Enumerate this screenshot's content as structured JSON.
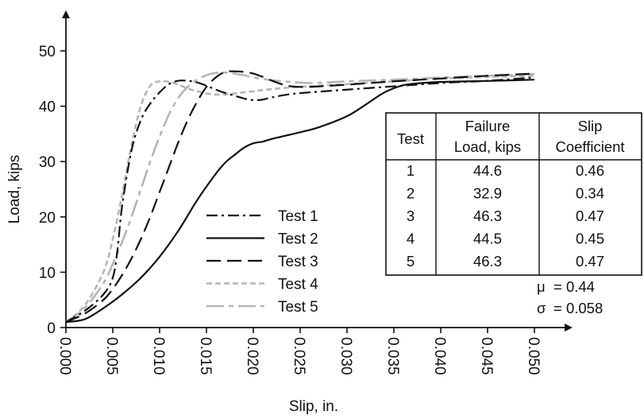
{
  "chart_data": {
    "type": "line",
    "xlabel": "Slip, in.",
    "ylabel": "Load, kips",
    "xlim": [
      0,
      0.05
    ],
    "ylim": [
      0,
      50
    ],
    "x_ticks": [
      "0.000",
      "0.005",
      "0.010",
      "0.015",
      "0.020",
      "0.025",
      "0.030",
      "0.035",
      "0.040",
      "0.045",
      "0.050"
    ],
    "y_ticks": [
      "0",
      "10",
      "20",
      "30",
      "40",
      "50"
    ],
    "grid": false,
    "legend_position": "center",
    "series": [
      {
        "name": "Test 1",
        "color": "#111111",
        "dash": "dash-dot",
        "x": [
          0,
          0.002,
          0.004,
          0.005,
          0.0055,
          0.006,
          0.007,
          0.008,
          0.009,
          0.01,
          0.011,
          0.012,
          0.013,
          0.014,
          0.015,
          0.016,
          0.017,
          0.018,
          0.019,
          0.02,
          0.021,
          0.022,
          0.024,
          0.026,
          0.03,
          0.035,
          0.04,
          0.045,
          0.05
        ],
        "y": [
          1,
          3,
          6,
          9,
          14,
          22,
          32,
          37.5,
          40.5,
          42.5,
          44,
          44.6,
          44.6,
          44.3,
          43.7,
          43,
          42.4,
          41.9,
          41.4,
          41.1,
          41.2,
          41.6,
          42.2,
          42.5,
          43,
          43.6,
          44.2,
          44.6,
          45.2
        ]
      },
      {
        "name": "Test 2",
        "color": "#111111",
        "dash": "solid",
        "x": [
          0,
          0.002,
          0.004,
          0.006,
          0.008,
          0.01,
          0.012,
          0.014,
          0.016,
          0.017,
          0.018,
          0.019,
          0.02,
          0.021,
          0.022,
          0.023,
          0.025,
          0.027,
          0.03,
          0.032,
          0.034,
          0.036,
          0.038,
          0.04,
          0.043,
          0.046,
          0.05
        ],
        "y": [
          1,
          1.5,
          3.5,
          6,
          9,
          12.8,
          17.5,
          23,
          27.8,
          29.8,
          31.2,
          32.5,
          33.3,
          33.6,
          34.1,
          34.5,
          35.3,
          36.2,
          38.2,
          40.3,
          42.5,
          43.8,
          44.2,
          44.4,
          44.5,
          44.6,
          44.8
        ]
      },
      {
        "name": "Test 3",
        "color": "#111111",
        "dash": "dash",
        "x": [
          0,
          0.002,
          0.004,
          0.005,
          0.006,
          0.007,
          0.008,
          0.009,
          0.01,
          0.011,
          0.012,
          0.013,
          0.014,
          0.015,
          0.016,
          0.017,
          0.018,
          0.019,
          0.02,
          0.021,
          0.022,
          0.023,
          0.024,
          0.026,
          0.03,
          0.035,
          0.04,
          0.045,
          0.05
        ],
        "y": [
          1,
          2.5,
          5,
          7,
          9.5,
          12.5,
          16,
          20,
          24.5,
          29,
          33.5,
          37.5,
          40.8,
          43.5,
          45.2,
          46.2,
          46.3,
          46.2,
          45.9,
          45.3,
          44.6,
          44.0,
          43.6,
          43.5,
          43.9,
          44.5,
          45.0,
          45.5,
          45.9
        ]
      },
      {
        "name": "Test 4",
        "color": "#b5b5b5",
        "dash": "short-dash",
        "x": [
          0,
          0.002,
          0.004,
          0.005,
          0.006,
          0.007,
          0.008,
          0.009,
          0.01,
          0.011,
          0.012,
          0.013,
          0.014,
          0.015,
          0.016,
          0.017,
          0.018,
          0.02,
          0.022,
          0.025,
          0.03,
          0.035,
          0.04,
          0.045,
          0.05
        ],
        "y": [
          1,
          4,
          10,
          16,
          24,
          33,
          40,
          43.7,
          44.5,
          44.4,
          43.9,
          43.2,
          42.7,
          42.3,
          42.1,
          42.1,
          42.3,
          42.7,
          43.1,
          43.5,
          44.0,
          44.5,
          45.0,
          45.3,
          45.5
        ]
      },
      {
        "name": "Test 5",
        "color": "#b5b5b5",
        "dash": "long-dash-dot",
        "x": [
          0,
          0.002,
          0.004,
          0.005,
          0.006,
          0.007,
          0.008,
          0.009,
          0.01,
          0.011,
          0.012,
          0.013,
          0.014,
          0.015,
          0.016,
          0.017,
          0.018,
          0.019,
          0.02,
          0.022,
          0.024,
          0.026,
          0.028,
          0.03,
          0.035,
          0.04,
          0.045,
          0.05
        ],
        "y": [
          1,
          3.5,
          8,
          11.5,
          15.5,
          20,
          25,
          30,
          34.5,
          38.5,
          41.5,
          43.5,
          44.8,
          45.6,
          46.0,
          46.1,
          45.9,
          45.6,
          45.2,
          44.7,
          44.4,
          44.2,
          44.3,
          44.5,
          44.8,
          45.2,
          45.5,
          45.8
        ]
      }
    ],
    "table": {
      "headers": [
        [
          "Test"
        ],
        [
          "Failure",
          "Load, kips"
        ],
        [
          "Slip",
          "Coefficient"
        ]
      ],
      "rows": [
        [
          "1",
          "44.6",
          "0.46"
        ],
        [
          "2",
          "32.9",
          "0.34"
        ],
        [
          "3",
          "46.3",
          "0.47"
        ],
        [
          "4",
          "44.5",
          "0.45"
        ],
        [
          "5",
          "46.3",
          "0.47"
        ]
      ]
    },
    "stats": [
      {
        "label": "μ",
        "value": "= 0.44"
      },
      {
        "label": "σ",
        "value": "= 0.058"
      }
    ]
  }
}
